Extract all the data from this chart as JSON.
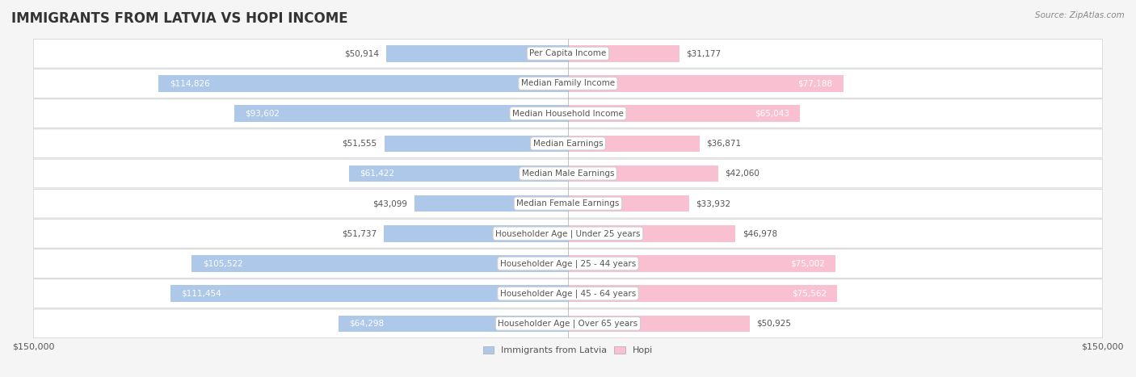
{
  "title": "IMMIGRANTS FROM LATVIA VS HOPI INCOME",
  "source": "Source: ZipAtlas.com",
  "categories": [
    "Per Capita Income",
    "Median Family Income",
    "Median Household Income",
    "Median Earnings",
    "Median Male Earnings",
    "Median Female Earnings",
    "Householder Age | Under 25 years",
    "Householder Age | 25 - 44 years",
    "Householder Age | 45 - 64 years",
    "Householder Age | Over 65 years"
  ],
  "latvia_values": [
    50914,
    114826,
    93602,
    51555,
    61422,
    43099,
    51737,
    105522,
    111454,
    64298
  ],
  "hopi_values": [
    31177,
    77188,
    65043,
    36871,
    42060,
    33932,
    46978,
    75002,
    75562,
    50925
  ],
  "latvia_color": "#7aadd4",
  "hopi_color": "#f07ca0",
  "latvia_light_color": "#adc8e8",
  "hopi_light_color": "#f9c0d2",
  "max_val": 150000,
  "background_color": "#f5f5f5",
  "row_bg_color": "#ffffff",
  "label_bg_color": "#f0f0f0",
  "legend_latvia": "Immigrants from Latvia",
  "legend_hopi": "Hopi"
}
